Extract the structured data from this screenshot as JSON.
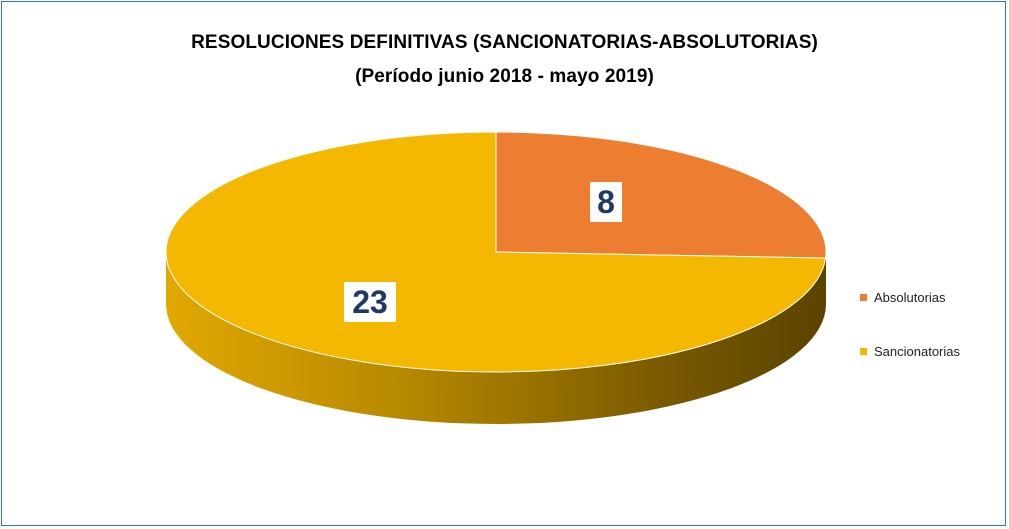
{
  "chart_data": {
    "type": "pie",
    "title": "RESOLUCIONES DEFINITIVAS (SANCIONATORIAS-ABSOLUTORIAS)",
    "subtitle": "(Período junio 2018 - mayo 2019)",
    "slices": [
      {
        "label": "Absolutorias",
        "value": 8,
        "color": "#ed7d31"
      },
      {
        "label": "Sancionatorias",
        "value": 23,
        "color": "#f5b800"
      }
    ],
    "legend_position": "right",
    "three_d": true
  },
  "colors": {
    "border": "#2e75b6",
    "label_text": "#1f3864"
  }
}
